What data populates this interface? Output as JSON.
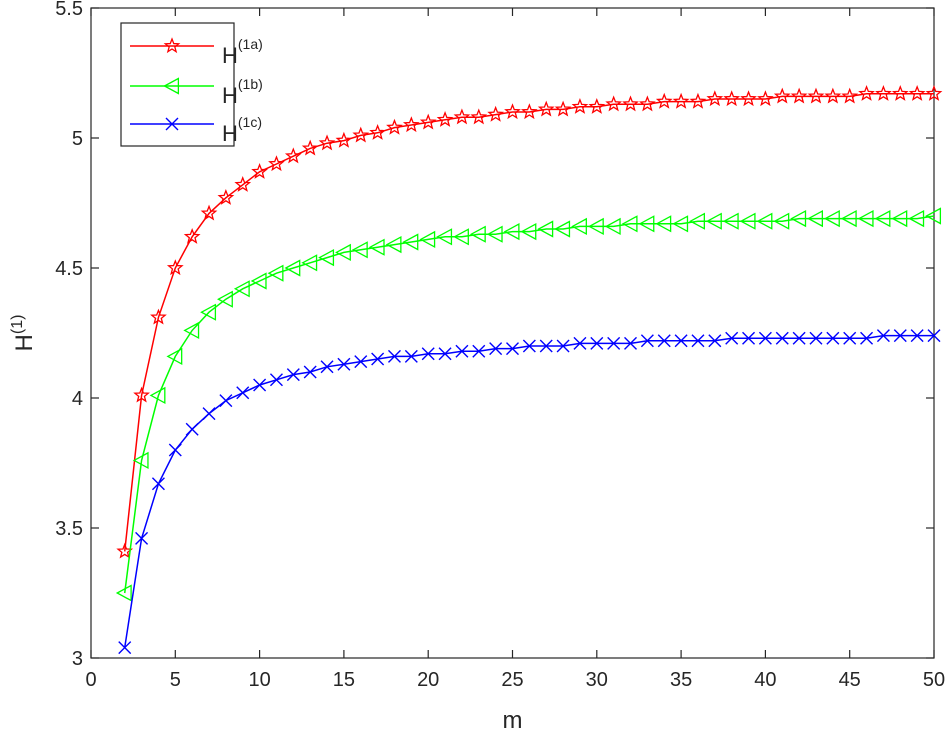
{
  "chart_data": {
    "type": "line",
    "xlabel": "m",
    "ylabel": {
      "base": "H",
      "sup": "(1)"
    },
    "xlim": [
      0,
      50
    ],
    "ylim": [
      3,
      5.5
    ],
    "xticks": [
      0,
      5,
      10,
      15,
      20,
      25,
      30,
      35,
      40,
      45,
      50
    ],
    "yticks": [
      3,
      3.5,
      4,
      4.5,
      5,
      5.5
    ],
    "xtick_labels": [
      "0",
      "5",
      "10",
      "15",
      "20",
      "25",
      "30",
      "35",
      "40",
      "45",
      "50"
    ],
    "ytick_labels": [
      "3",
      "3.5",
      "4",
      "4.5",
      "5",
      "5.5"
    ],
    "grid": false,
    "legend_position": "top-left",
    "x": [
      2,
      3,
      4,
      5,
      6,
      7,
      8,
      9,
      10,
      11,
      12,
      13,
      14,
      15,
      16,
      17,
      18,
      19,
      20,
      21,
      22,
      23,
      24,
      25,
      26,
      27,
      28,
      29,
      30,
      31,
      32,
      33,
      34,
      35,
      36,
      37,
      38,
      39,
      40,
      41,
      42,
      43,
      44,
      45,
      46,
      47,
      48,
      49,
      50
    ],
    "series": [
      {
        "name": "H",
        "sup": "(1a)",
        "color": "#ff0000",
        "marker": "star",
        "values": [
          3.41,
          4.01,
          4.31,
          4.5,
          4.62,
          4.71,
          4.77,
          4.82,
          4.87,
          4.9,
          4.93,
          4.96,
          4.98,
          4.99,
          5.01,
          5.02,
          5.04,
          5.05,
          5.06,
          5.07,
          5.08,
          5.08,
          5.09,
          5.1,
          5.1,
          5.11,
          5.11,
          5.12,
          5.12,
          5.13,
          5.13,
          5.13,
          5.14,
          5.14,
          5.14,
          5.15,
          5.15,
          5.15,
          5.15,
          5.16,
          5.16,
          5.16,
          5.16,
          5.16,
          5.17,
          5.17,
          5.17,
          5.17,
          5.17
        ]
      },
      {
        "name": "H",
        "sup": "(1b)",
        "color": "#00ff00",
        "marker": "triangle-left",
        "values": [
          3.25,
          3.76,
          4.01,
          4.16,
          4.26,
          4.33,
          4.38,
          4.42,
          4.45,
          4.48,
          4.5,
          4.52,
          4.54,
          4.56,
          4.57,
          4.58,
          4.59,
          4.6,
          4.61,
          4.62,
          4.62,
          4.63,
          4.63,
          4.64,
          4.64,
          4.65,
          4.65,
          4.66,
          4.66,
          4.66,
          4.67,
          4.67,
          4.67,
          4.67,
          4.68,
          4.68,
          4.68,
          4.68,
          4.68,
          4.68,
          4.69,
          4.69,
          4.69,
          4.69,
          4.69,
          4.69,
          4.69,
          4.69,
          4.7
        ]
      },
      {
        "name": "H",
        "sup": "(1c)",
        "color": "#0000ff",
        "marker": "x",
        "values": [
          3.04,
          3.46,
          3.67,
          3.8,
          3.88,
          3.94,
          3.99,
          4.02,
          4.05,
          4.07,
          4.09,
          4.1,
          4.12,
          4.13,
          4.14,
          4.15,
          4.16,
          4.16,
          4.17,
          4.17,
          4.18,
          4.18,
          4.19,
          4.19,
          4.2,
          4.2,
          4.2,
          4.21,
          4.21,
          4.21,
          4.21,
          4.22,
          4.22,
          4.22,
          4.22,
          4.22,
          4.23,
          4.23,
          4.23,
          4.23,
          4.23,
          4.23,
          4.23,
          4.23,
          4.23,
          4.24,
          4.24,
          4.24,
          4.24
        ]
      }
    ]
  }
}
